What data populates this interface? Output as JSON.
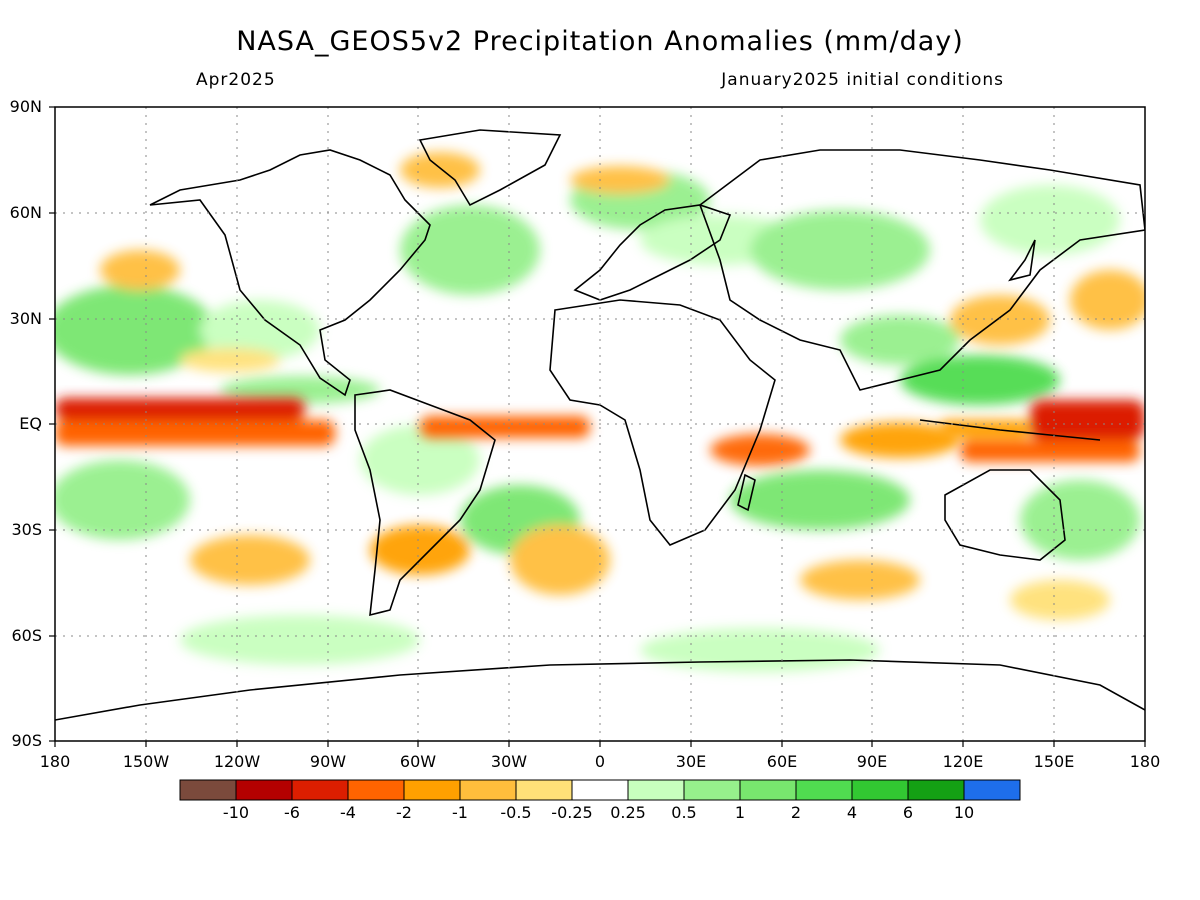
{
  "title": "NASA_GEOS5v2 Precipitation Anomalies (mm/day)",
  "subtitle_left": "Apr2025",
  "subtitle_right": "January2025 initial conditions",
  "map": {
    "lat_labels": [
      "90N",
      "60N",
      "30N",
      "EQ",
      "30S",
      "60S",
      "90S"
    ],
    "lon_labels": [
      "180",
      "150W",
      "120W",
      "90W",
      "60W",
      "30W",
      "0",
      "30E",
      "60E",
      "90E",
      "120E",
      "150E",
      "180"
    ]
  },
  "colorbar": {
    "colors": [
      "#7b4a3c",
      "#b40000",
      "#dc1e00",
      "#ff6400",
      "#ffa000",
      "#ffbe3c",
      "#ffe178",
      "#ffffff",
      "#c8ffbe",
      "#96f08c",
      "#78e66e",
      "#50dc50",
      "#32c832",
      "#14a014",
      "#1e6eeb"
    ],
    "labels": [
      "-10",
      "-6",
      "-4",
      "-2",
      "-1",
      "-0.5",
      "-0.25",
      "0.25",
      "0.5",
      "1",
      "2",
      "4",
      "6",
      "10"
    ]
  }
}
